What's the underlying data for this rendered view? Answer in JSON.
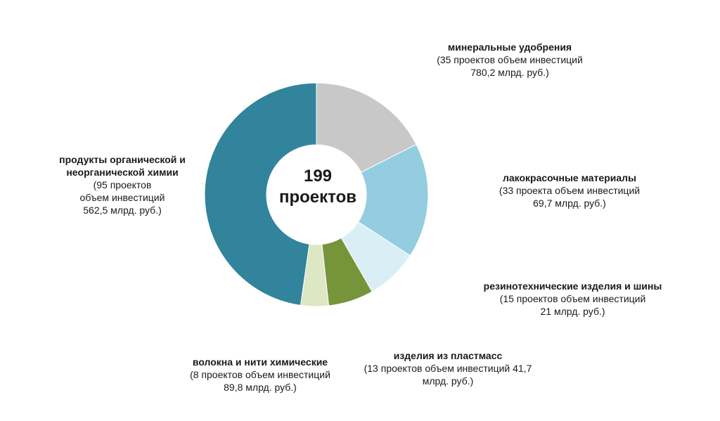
{
  "center": {
    "line1": "199",
    "line2": "проектов"
  },
  "chart_data": {
    "type": "pie",
    "title": "",
    "total_projects": 199,
    "slices": [
      {
        "name": "минеральные удобрения",
        "projects": 35,
        "investment": "780,2 млрд. руб.",
        "color": "#C8C8C8"
      },
      {
        "name": "лакокрасочные материалы",
        "projects": 33,
        "investment": "69,7 млрд. руб.",
        "color": "#94CDE0"
      },
      {
        "name": "резинотехнические изделия и шины",
        "projects": 15,
        "investment": "21 млрд. руб.",
        "color": "#DAEEF5"
      },
      {
        "name": "изделия из пластмасс",
        "projects": 13,
        "investment": "41,7 млрд. руб.",
        "color": "#76953A"
      },
      {
        "name": "волокна и нити химические",
        "projects": 8,
        "investment": "89,8 млрд. руб.",
        "color": "#DDE7C4"
      },
      {
        "name": "продукты органической и неорганической химии",
        "projects": 95,
        "investment": "562,5 млрд. руб.",
        "color": "#31849B"
      }
    ]
  },
  "labels": {
    "mineral": {
      "title": "минеральные удобрения",
      "line1": "(35 проектов объем инвестиций",
      "line2": "780,2 млрд.  руб.)"
    },
    "paint": {
      "title": "лакокрасочные материалы",
      "line1": "(33 проекта объем инвестиций",
      "line2": "69,7 млрд.  руб.)"
    },
    "rubber": {
      "title": "резинотехнические изделия и шины",
      "line1": "(15 проектов объем инвестиций",
      "line2": "21 млрд.  руб.)"
    },
    "plastic": {
      "title": "изделия из пластмасс",
      "line1": "(13 проектов объем инвестиций  41,7",
      "line2": "млрд.  руб.)"
    },
    "fiber": {
      "title": "волокна и нити химические",
      "line1": "(8 проектов объем инвестиций",
      "line2": "89,8 млрд.  руб.)"
    },
    "chem": {
      "title1": "продукты органической и",
      "title2": "неорганической химии",
      "line1": "(95 проектов",
      "line2": "объем инвестиций",
      "line3": "562,5 млрд.  руб.)"
    }
  }
}
